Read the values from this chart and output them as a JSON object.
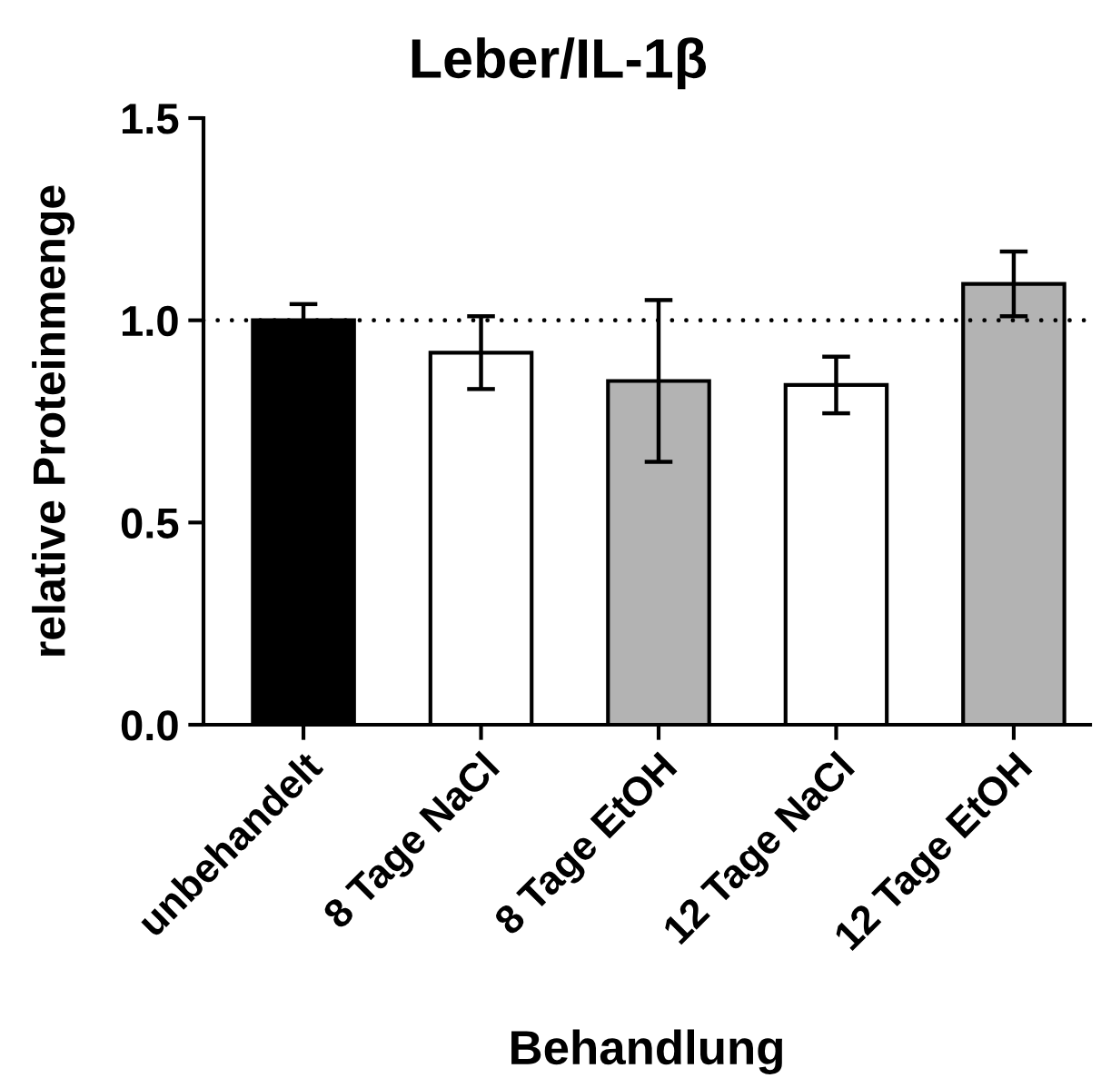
{
  "chart_data": {
    "type": "bar",
    "title": "Leber/IL-1β",
    "xlabel": "Behandlung",
    "ylabel": "relative Proteinmenge",
    "categories": [
      "unbehandelt",
      "8 Tage NaCl",
      "8 Tage EtOH",
      "12 Tage NaCl",
      "12 Tage EtOH"
    ],
    "values": [
      1.0,
      0.92,
      0.85,
      0.84,
      1.09
    ],
    "errors": [
      0.04,
      0.09,
      0.2,
      0.07,
      0.08
    ],
    "colors": [
      "#000000",
      "#ffffff",
      "#b3b3b3",
      "#ffffff",
      "#b3b3b3"
    ],
    "ylim": [
      0,
      1.5
    ],
    "yticks": [
      {
        "value": 0,
        "label": "0.0"
      },
      {
        "value": 0.5,
        "label": "0.5"
      },
      {
        "value": 1,
        "label": "1.0"
      },
      {
        "value": 1.5,
        "label": "1.5"
      }
    ],
    "ref_lines": [
      {
        "axis": "y",
        "value": 1,
        "line_style": "dotted",
        "color": "#000000"
      }
    ]
  }
}
